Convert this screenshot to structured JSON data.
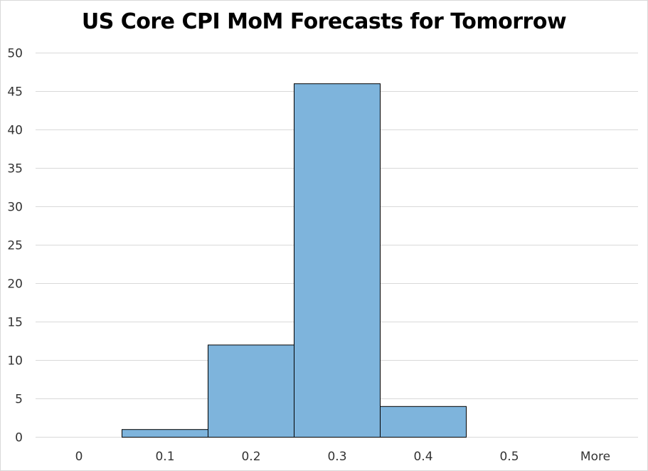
{
  "chart_data": {
    "type": "bar",
    "title": "US Core CPI MoM Forecasts for Tomorrow",
    "xlabel": "",
    "ylabel": "",
    "categories": [
      "0",
      "0.1",
      "0.2",
      "0.3",
      "0.4",
      "0.5",
      "More"
    ],
    "values": [
      0,
      1,
      12,
      46,
      4,
      0,
      0
    ],
    "ylim": [
      0,
      50
    ],
    "yticks": [
      "0",
      "5",
      "10",
      "15",
      "20",
      "25",
      "30",
      "35",
      "40",
      "45",
      "50"
    ],
    "grid": true,
    "legend": "none",
    "bar_color": "#7eb4dc",
    "bar_edge_color": "#000000",
    "grid_color": "#d9d9d9"
  }
}
